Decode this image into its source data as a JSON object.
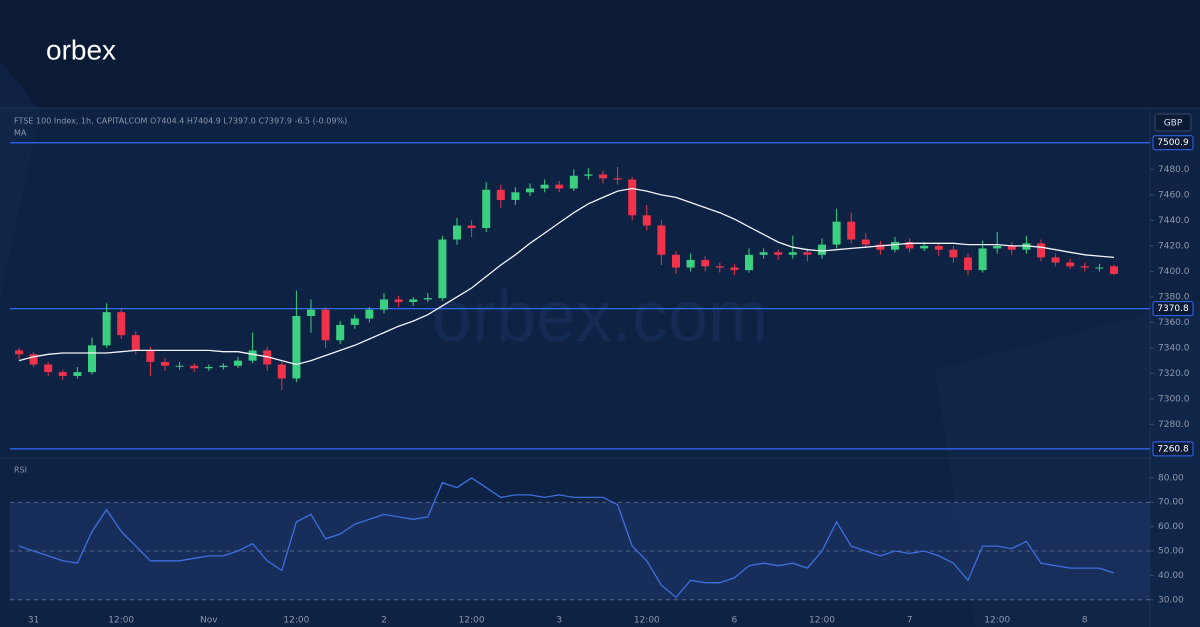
{
  "brand": "orbex",
  "watermark": "orbex.com",
  "chart_data": [
    {
      "type": "candlestick",
      "title": "FTSE 100 Index, 1h, CAPITALCOM",
      "subtitle": "O7404.4 H7404.9 L7397.0 C7397.9 -6.5 (-0.09%)",
      "currency": "GBP",
      "up_color": "#3ad07f",
      "down_color": "#f0334a",
      "categories": [
        null,
        "31",
        null,
        null,
        null,
        null,
        null,
        "12:00",
        null,
        null,
        null,
        null,
        null,
        "Nov",
        null,
        null,
        null,
        null,
        null,
        "12:00",
        null,
        null,
        null,
        null,
        null,
        "2",
        null,
        null,
        null,
        null,
        null,
        "12:00",
        null,
        null,
        null,
        null,
        null,
        "3",
        null,
        null,
        null,
        null,
        null,
        "12:00",
        null,
        null,
        null,
        null,
        null,
        "6",
        null,
        null,
        null,
        null,
        null,
        "12:00",
        null,
        null,
        null,
        null,
        null,
        "7",
        null,
        null,
        null,
        null,
        null,
        "12:00",
        null,
        null,
        null,
        null,
        null,
        "8",
        null,
        null
      ],
      "open": [
        7338,
        7335,
        7327,
        7321,
        7318,
        7321,
        7342,
        7368,
        7350,
        7338,
        7329,
        7326,
        7326,
        7324,
        7325,
        7326,
        7330,
        7338,
        7327,
        7316,
        7365,
        7370,
        7346,
        7358,
        7363,
        7370,
        7378,
        7376,
        7378,
        7379,
        7425,
        7436,
        7434,
        7464,
        7456,
        7462,
        7465,
        7468,
        7465,
        7475,
        7476,
        7473,
        7472,
        7444,
        7436,
        7413,
        7403,
        7409,
        7404,
        7403,
        7401,
        7413,
        7415,
        7413,
        7415,
        7413,
        7421,
        7439,
        7425,
        7421,
        7417,
        7423,
        7418,
        7420,
        7417,
        7411,
        7401,
        7418,
        7420,
        7417,
        7422,
        7411,
        7407,
        7404,
        7403,
        7404
      ],
      "high": [
        7340,
        7337,
        7329,
        7323,
        7325,
        7348,
        7375,
        7371,
        7353,
        7341,
        7332,
        7329,
        7328,
        7327,
        7328,
        7333,
        7352,
        7341,
        7329,
        7385,
        7378,
        7372,
        7361,
        7366,
        7372,
        7383,
        7381,
        7380,
        7383,
        7428,
        7442,
        7440,
        7470,
        7468,
        7466,
        7469,
        7472,
        7471,
        7480,
        7481,
        7479,
        7482,
        7474,
        7452,
        7440,
        7416,
        7414,
        7412,
        7407,
        7406,
        7418,
        7418,
        7417,
        7428,
        7418,
        7426,
        7449,
        7446,
        7430,
        7424,
        7427,
        7426,
        7423,
        7422,
        7420,
        7414,
        7424,
        7431,
        7423,
        7428,
        7425,
        7414,
        7410,
        7407,
        7406,
        7405
      ],
      "low": [
        7331,
        7325,
        7318,
        7315,
        7316,
        7319,
        7340,
        7347,
        7335,
        7318,
        7322,
        7323,
        7321,
        7322,
        7323,
        7324,
        7328,
        7322,
        7307,
        7313,
        7352,
        7340,
        7343,
        7355,
        7360,
        7367,
        7372,
        7373,
        7376,
        7377,
        7421,
        7427,
        7431,
        7450,
        7452,
        7459,
        7462,
        7462,
        7463,
        7472,
        7469,
        7468,
        7440,
        7432,
        7405,
        7398,
        7400,
        7400,
        7399,
        7397,
        7399,
        7410,
        7409,
        7410,
        7408,
        7410,
        7418,
        7422,
        7418,
        7413,
        7415,
        7415,
        7416,
        7412,
        7407,
        7397,
        7399,
        7414,
        7413,
        7414,
        7408,
        7404,
        7402,
        7400,
        7400,
        7397
      ],
      "close": [
        7335,
        7327,
        7321,
        7318,
        7321,
        7342,
        7368,
        7350,
        7338,
        7329,
        7326,
        7326,
        7324,
        7325,
        7326,
        7330,
        7338,
        7327,
        7316,
        7365,
        7370,
        7346,
        7358,
        7363,
        7370,
        7378,
        7376,
        7378,
        7379,
        7425,
        7436,
        7434,
        7464,
        7456,
        7462,
        7465,
        7468,
        7465,
        7475,
        7476,
        7473,
        7472,
        7444,
        7436,
        7413,
        7403,
        7409,
        7404,
        7403,
        7401,
        7413,
        7415,
        7413,
        7415,
        7413,
        7421,
        7439,
        7425,
        7421,
        7417,
        7423,
        7418,
        7420,
        7417,
        7411,
        7401,
        7418,
        7420,
        7417,
        7422,
        7411,
        7407,
        7404,
        7403,
        7403,
        7398
      ],
      "series": [
        {
          "name": "MA",
          "color": "#f2f4f8",
          "values": [
            7330,
            7333,
            7335,
            7336,
            7336,
            7336,
            7336,
            7337,
            7338,
            7338,
            7338,
            7338,
            7338,
            7338,
            7337,
            7337,
            7335,
            7333,
            7330,
            7327,
            7330,
            7334,
            7338,
            7342,
            7347,
            7352,
            7357,
            7361,
            7366,
            7373,
            7380,
            7387,
            7396,
            7405,
            7413,
            7422,
            7430,
            7438,
            7446,
            7453,
            7458,
            7463,
            7465,
            7463,
            7460,
            7458,
            7454,
            7450,
            7446,
            7441,
            7435,
            7429,
            7423,
            7419,
            7417,
            7416,
            7417,
            7418,
            7419,
            7420,
            7421,
            7422,
            7422,
            7422,
            7422,
            7421,
            7421,
            7421,
            7420,
            7420,
            7419,
            7417,
            7415,
            7413,
            7412,
            7411
          ]
        }
      ],
      "levels": [
        7500.9,
        7370.8,
        7260.8
      ],
      "level_color": "#2f6bff",
      "ylim": [
        7256,
        7525
      ],
      "yticks": [
        {
          "value": 7480,
          "label": "7480.0"
        },
        {
          "value": 7460,
          "label": "7460.0"
        },
        {
          "value": 7440,
          "label": "7440.0"
        },
        {
          "value": 7420,
          "label": "7420.0"
        },
        {
          "value": 7400,
          "label": "7400.0"
        },
        {
          "value": 7380,
          "label": "7380.0"
        },
        {
          "value": 7360,
          "label": "7360.0"
        },
        {
          "value": 7340,
          "label": "7340.0"
        },
        {
          "value": 7320,
          "label": "7320.0"
        },
        {
          "value": 7300,
          "label": "7300.0"
        },
        {
          "value": 7280,
          "label": "7280.0"
        }
      ]
    },
    {
      "type": "line",
      "series": [
        {
          "name": "RSI",
          "color": "#3d6fe0",
          "values": [
            52,
            50,
            48,
            46,
            45,
            58,
            67,
            58,
            52,
            46,
            46,
            46,
            47,
            48,
            48,
            50,
            53,
            46,
            42,
            62,
            65,
            55,
            57,
            61,
            63,
            65,
            64,
            63,
            64,
            78,
            76,
            80,
            76,
            72,
            73,
            73,
            72,
            73,
            72,
            72,
            72,
            69,
            52,
            46,
            36,
            31,
            38,
            37,
            37,
            39,
            44,
            45,
            44,
            45,
            43,
            50,
            62,
            52,
            50,
            48,
            50,
            49,
            50,
            48,
            45,
            38,
            52,
            52,
            51,
            54,
            45,
            44,
            43,
            43,
            43,
            41
          ]
        }
      ],
      "levels": [
        70,
        50,
        30
      ],
      "ylim": [
        25,
        86.5
      ],
      "yticks": [
        {
          "value": 80,
          "label": "80.00"
        },
        {
          "value": 70,
          "label": "70.00"
        },
        {
          "value": 60,
          "label": "60.00"
        },
        {
          "value": 50,
          "label": "50.00"
        },
        {
          "value": 40,
          "label": "40.00"
        },
        {
          "value": 30,
          "label": "30.00"
        }
      ]
    }
  ]
}
